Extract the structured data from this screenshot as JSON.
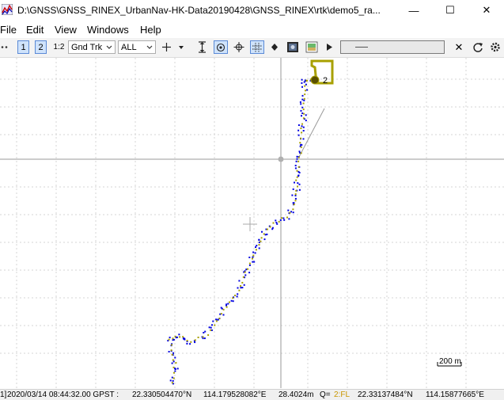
{
  "window": {
    "title": "D:\\GNSS\\GNSS_RINEX_UrbanNav-HK-Data20190428\\GNSS_RINEX\\rtk\\demo5_ra...",
    "minimize_glyph": "—",
    "maximize_glyph": "☐",
    "close_glyph": "✕"
  },
  "menu": [
    "File",
    "Edit",
    "View",
    "Windows",
    "Help"
  ],
  "toolbar": {
    "toggle_1": "1",
    "toggle_2": "2",
    "toggle_12": "1:2",
    "plot_type": "Gnd Trk",
    "sat_filter": "ALL",
    "clear_glyph": "✕",
    "icons": [
      "drag-handle-icon",
      "crosshair-icon",
      "dropdown-arrow-icon",
      "fit-vertical-icon",
      "center-origin-icon",
      "center-point-icon",
      "grid-icon",
      "point-icon",
      "map-image-icon",
      "sky-image-icon",
      "play-icon",
      "clear-icon",
      "reload-icon",
      "settings-icon"
    ]
  },
  "plot": {
    "marker_label": "2",
    "scale_label": "200 m",
    "colors": {
      "fix_yellow": "#a8a000",
      "float_blue": "#0000e0",
      "grid": "#d4d4d4",
      "axis": "#9a9a9a"
    }
  },
  "status": {
    "prefix": "1]",
    "time": "2020/03/14 08:44:32.00 GPST :",
    "lat1": "22.330504470°N",
    "lon1": "114.179528082°E",
    "height": "28.4024m",
    "q_label": "Q=",
    "q_value": "2:FL",
    "lat2": "22.33137484°N",
    "lon2": "114.15877665°E"
  }
}
